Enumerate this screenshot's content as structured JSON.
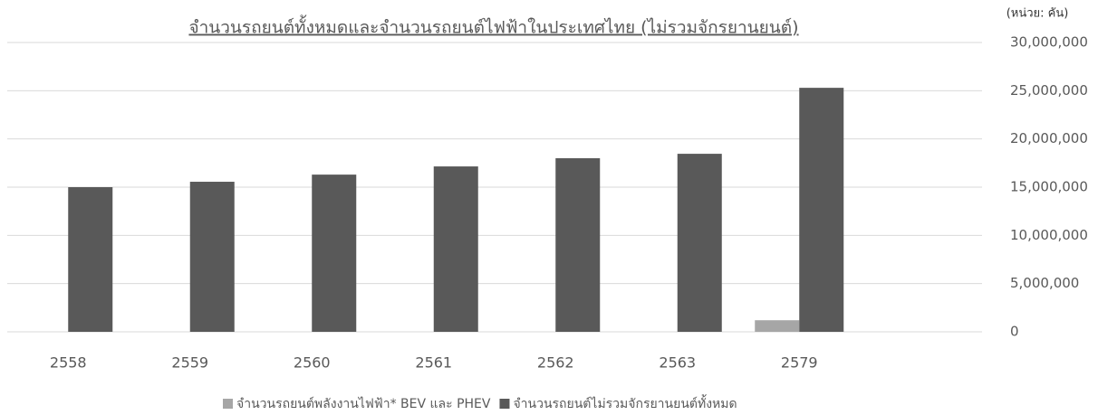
{
  "chart_data": {
    "type": "bar",
    "title": "จำนวนรถยนต์ทั้งหมดและจำนวนรถยนต์ไฟฟ้าในประเทศไทย (ไม่รวมจักรยานยนต์)",
    "y_axis_label": "(หน่วย: คัน)",
    "categories": [
      "2558",
      "2559",
      "2560",
      "2561",
      "2562",
      "2563",
      "2579",
      null
    ],
    "series": [
      {
        "name": "จำนวนรถยนต์พลังงานไฟฟ้า* BEV และ PHEV",
        "color": "#a6a6a6",
        "values": [
          null,
          null,
          null,
          null,
          null,
          null,
          1200000,
          null
        ]
      },
      {
        "name": "จำนวนรถยนต์ไม่รวมจักรยานยนต์ทั้งหมด",
        "color": "#595959",
        "values": [
          15000000,
          15560000,
          16300000,
          17150000,
          18000000,
          18460000,
          25300000,
          null
        ]
      }
    ],
    "ylim": [
      0,
      30000000
    ],
    "yticks": [
      0,
      {
        "value": 5000000,
        "label": "5,000,000"
      },
      {
        "value": 10000000,
        "label": "10,000,000"
      },
      {
        "value": 15000000,
        "label": "15,000,000"
      },
      {
        "value": 20000000,
        "label": "20,000,000"
      },
      {
        "value": 25000000,
        "label": "25,000,000"
      },
      {
        "value": 30000000,
        "label": "30,000,000"
      }
    ],
    "grid": true,
    "y_axis_side": "right",
    "legend": "bottom"
  }
}
